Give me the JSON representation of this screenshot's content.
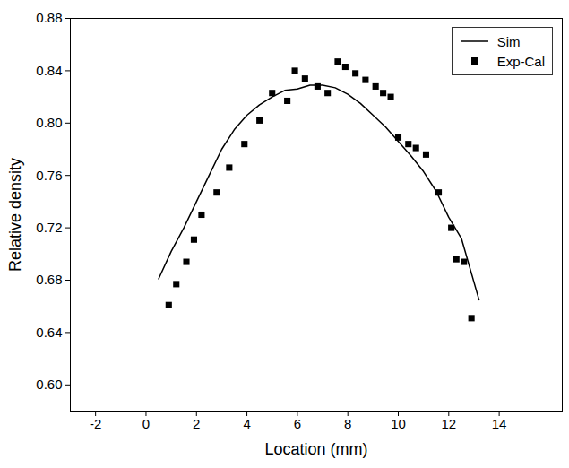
{
  "chart_data": {
    "type": "line",
    "x_label": "Location (mm)",
    "y_label": "Relative density",
    "xlim": [
      -3,
      16.5
    ],
    "xticks": [
      -2,
      0,
      2,
      4,
      6,
      8,
      10,
      12,
      14
    ],
    "ylim": [
      0.58,
      0.88
    ],
    "yticks": [
      {
        "value": 0.6,
        "label": "0.60"
      },
      {
        "value": 0.64,
        "label": "0.64"
      },
      {
        "value": 0.68,
        "label": "0.68"
      },
      {
        "value": 0.72,
        "label": "0.72"
      },
      {
        "value": 0.76,
        "label": "0.76"
      },
      {
        "value": 0.8,
        "label": "0.80"
      },
      {
        "value": 0.84,
        "label": "0.84"
      },
      {
        "value": 0.88,
        "label": "0.88"
      }
    ],
    "grid": false,
    "legend": "top-right",
    "series": [
      {
        "name": "Sim",
        "type": "line",
        "color": "#000000",
        "line_style": "solid",
        "x": [
          0.5,
          1.0,
          1.5,
          2.0,
          2.5,
          3.0,
          3.5,
          4.0,
          4.5,
          5.0,
          5.5,
          6.0,
          6.5,
          7.0,
          7.5,
          8.0,
          8.5,
          9.0,
          9.5,
          10.0,
          10.5,
          11.0,
          11.5,
          12.0,
          12.5,
          13.2
        ],
        "values": [
          0.681,
          0.702,
          0.72,
          0.74,
          0.76,
          0.78,
          0.795,
          0.806,
          0.814,
          0.82,
          0.825,
          0.826,
          0.829,
          0.829,
          0.827,
          0.822,
          0.815,
          0.806,
          0.797,
          0.786,
          0.775,
          0.763,
          0.748,
          0.728,
          0.712,
          0.665
        ]
      },
      {
        "name": "Exp-Cal",
        "type": "scatter",
        "color": "#000000",
        "marker": "square",
        "x": [
          0.9,
          1.2,
          1.6,
          1.9,
          2.2,
          2.8,
          3.3,
          3.9,
          4.5,
          5.0,
          5.6,
          5.9,
          6.3,
          6.8,
          7.2,
          7.6,
          7.9,
          8.3,
          8.7,
          9.1,
          9.4,
          9.7,
          10.0,
          10.4,
          10.7,
          11.1,
          11.6,
          12.1,
          12.3,
          12.6,
          12.9
        ],
        "values": [
          0.661,
          0.677,
          0.694,
          0.711,
          0.73,
          0.747,
          0.766,
          0.784,
          0.802,
          0.823,
          0.817,
          0.84,
          0.834,
          0.828,
          0.823,
          0.847,
          0.843,
          0.838,
          0.833,
          0.828,
          0.823,
          0.82,
          0.789,
          0.784,
          0.781,
          0.776,
          0.747,
          0.72,
          0.696,
          0.694,
          0.651
        ]
      }
    ]
  }
}
